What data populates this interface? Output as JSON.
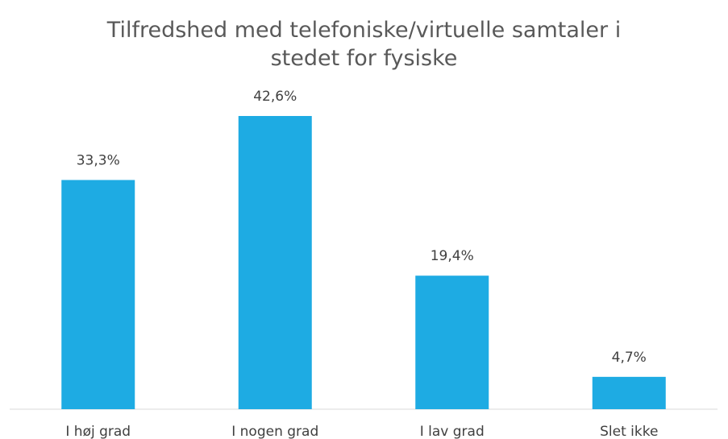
{
  "chart_data": {
    "type": "bar",
    "title": "Tilfredshed med telefoniske/virtuelle samtaler i stedet for fysiske",
    "categories": [
      "I høj grad",
      "I nogen grad",
      "I lav grad",
      "Slet ikke"
    ],
    "values": [
      33.3,
      42.6,
      19.4,
      4.7
    ],
    "value_labels": [
      "33,3%",
      "42,6%",
      "19,4%",
      "4,7%"
    ],
    "color": "#1eabe3"
  }
}
